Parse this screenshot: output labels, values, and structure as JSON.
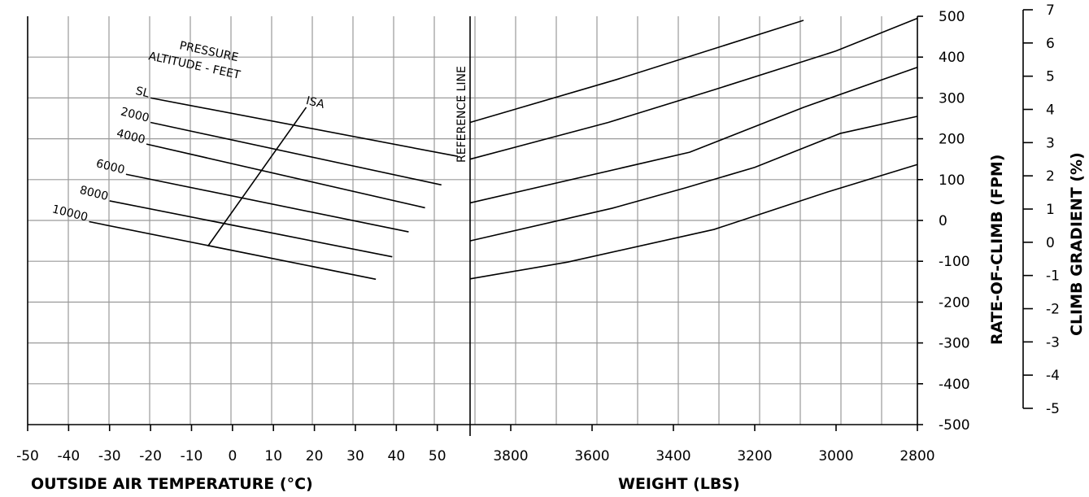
{
  "chart_data": {
    "type": "line",
    "panels": [
      {
        "name": "temperature",
        "xlabel": "OUTSIDE AIR TEMPERATURE (°C)",
        "xticks": [
          -50,
          -40,
          -30,
          -20,
          -10,
          0,
          10,
          20,
          30,
          40,
          50
        ],
        "xlim": [
          -50,
          58
        ],
        "legend_title": [
          "PRESSURE",
          "ALTITUDE - FEET"
        ],
        "series": [
          {
            "name": "SL",
            "x": [
              -20,
              55
            ],
            "y": [
              300,
              157
            ]
          },
          {
            "name": "2000",
            "x": [
              -20,
              51
            ],
            "y": [
              240,
              87
            ]
          },
          {
            "name": "4000",
            "x": [
              -21,
              47
            ],
            "y": [
              187,
              31
            ]
          },
          {
            "name": "6000",
            "x": [
              -26,
              43
            ],
            "y": [
              113,
              -28
            ]
          },
          {
            "name": "8000",
            "x": [
              -30,
              39
            ],
            "y": [
              48,
              -89
            ]
          },
          {
            "name": "10000",
            "x": [
              -35,
              35
            ],
            "y": [
              -3,
              -144
            ]
          },
          {
            "name": "ISA",
            "x": [
              -6,
              18
            ],
            "y": [
              -63,
              277
            ]
          }
        ]
      },
      {
        "name": "weight",
        "xlabel": "WEIGHT (LBS)",
        "xticks": [
          3800,
          3600,
          3400,
          3200,
          3000,
          2800
        ],
        "xlim": [
          3900,
          2800
        ],
        "reference_label": "REFERENCE LINE",
        "series": [
          {
            "x": [
              3900,
              3540,
              3080
            ],
            "y": [
              240,
              345,
              490
            ]
          },
          {
            "x": [
              3900,
              3560,
              3300,
              3000,
              2800
            ],
            "y": [
              150,
              240,
              320,
              415,
              495
            ]
          },
          {
            "x": [
              3900,
              3360,
              3080,
              2800
            ],
            "y": [
              43,
              167,
              277,
              375
            ]
          },
          {
            "x": [
              3900,
              3550,
              3370,
              3200,
              2990,
              2800
            ],
            "y": [
              -50,
              30,
              80,
              130,
              213,
              255
            ]
          },
          {
            "x": [
              3900,
              3660,
              3300,
              3020,
              2800
            ],
            "y": [
              -143,
              -102,
              -22,
              70,
              137
            ]
          }
        ]
      }
    ],
    "y_left": {
      "label": "RATE-OF-CLIMB (FPM)",
      "ticks": [
        500,
        400,
        300,
        200,
        100,
        0,
        -100,
        -200,
        -300,
        -400,
        -500
      ],
      "ylim": [
        -500,
        500
      ]
    },
    "y_right": {
      "label": "CLIMB GRADIENT (%)",
      "ticks": [
        7,
        6,
        5,
        4,
        3,
        2,
        1,
        0,
        -1,
        -2,
        -3,
        -4,
        -5
      ]
    },
    "grid": true
  }
}
